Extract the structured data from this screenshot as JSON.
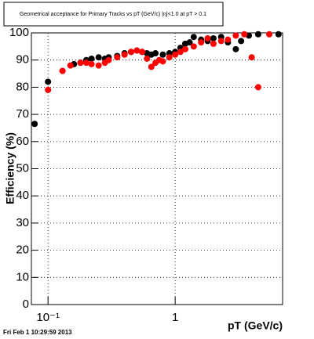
{
  "chart_data": {
    "type": "scatter",
    "title": "Geometrical acceptance for Primary Tracks vs pT (GeV/c) |η|<1.0 at pT > 0.1",
    "x_label": "pT (GeV/c)",
    "y_label": "Efficiency (%)",
    "footer": "Fri Feb  1 10:29:59 2013",
    "log_x": true,
    "grid": true,
    "xlim": [
      0.074,
      7
    ],
    "ylim": [
      0,
      100
    ],
    "xticks": [
      {
        "value": 0.1,
        "label": "10⁻¹"
      },
      1
    ],
    "yticks": [
      0,
      10,
      20,
      30,
      40,
      50,
      60,
      70,
      80,
      90,
      100
    ],
    "series": [
      {
        "name": "black",
        "color": "#000000",
        "x": [
          0.0785,
          0.1,
          0.13,
          0.16,
          0.18,
          0.2,
          0.22,
          0.25,
          0.28,
          0.3,
          0.35,
          0.4,
          0.45,
          0.5,
          0.55,
          0.6,
          0.65,
          0.7,
          0.8,
          0.9,
          1.0,
          1.1,
          1.2,
          1.3,
          1.4,
          1.6,
          1.8,
          2.0,
          2.3,
          2.6,
          3.0,
          3.3,
          3.8,
          4.5,
          6.5
        ],
        "values": [
          66.5,
          82,
          86,
          88.5,
          89,
          90,
          90.5,
          91,
          90.5,
          91,
          91.5,
          92.5,
          93,
          93.5,
          93,
          92.5,
          92,
          92.5,
          92,
          92.5,
          93,
          94.5,
          96,
          96.5,
          98.5,
          97.5,
          97,
          98,
          98.5,
          96.5,
          94,
          97,
          99,
          99.5,
          99.5
        ]
      },
      {
        "name": "red",
        "color": "#ff0000",
        "x": [
          0.1,
          0.13,
          0.15,
          0.18,
          0.2,
          0.22,
          0.25,
          0.28,
          0.3,
          0.35,
          0.4,
          0.45,
          0.5,
          0.55,
          0.6,
          0.65,
          0.7,
          0.75,
          0.8,
          0.9,
          1.0,
          1.1,
          1.2,
          1.4,
          1.6,
          1.8,
          2.0,
          2.3,
          2.6,
          3.0,
          3.5,
          4.0,
          4.5,
          5.5
        ],
        "values": [
          79,
          86,
          88,
          89,
          89,
          88.5,
          88,
          89,
          90,
          91,
          92,
          93,
          93.5,
          93,
          90.5,
          87.5,
          89,
          90,
          89.5,
          91,
          92,
          93,
          94,
          95,
          96.5,
          98,
          96,
          97,
          97.5,
          99,
          99.5,
          91,
          80,
          99.5
        ]
      }
    ]
  }
}
